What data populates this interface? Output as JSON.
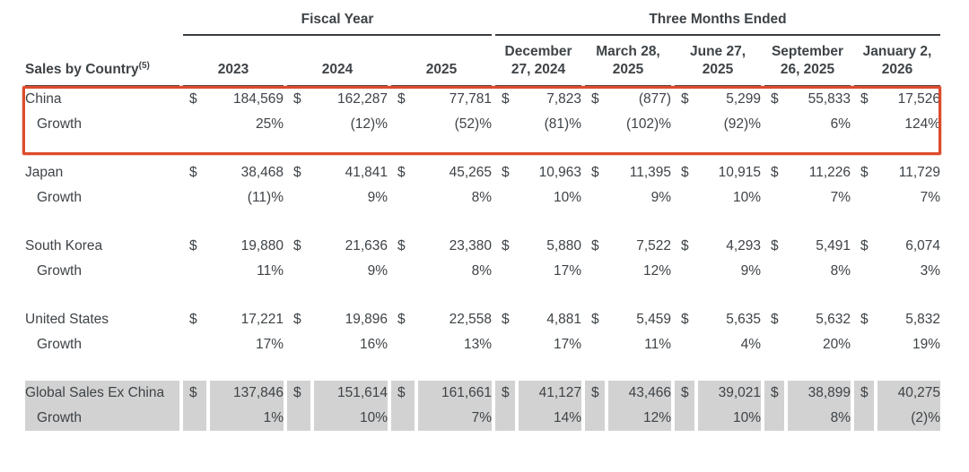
{
  "table": {
    "corner_label": "Sales by Country",
    "corner_superscript": "(5)",
    "currency_symbol": "$",
    "growth_label": "Growth",
    "groups": [
      {
        "label": "Fiscal Year",
        "columns": [
          [
            "2023"
          ],
          [
            "2024"
          ],
          [
            "2025"
          ]
        ]
      },
      {
        "label": "Three Months Ended",
        "columns": [
          [
            "December",
            "27, 2024"
          ],
          [
            "March 28,",
            "2025"
          ],
          [
            "June 27,",
            "2025"
          ],
          [
            "September",
            "26, 2025"
          ],
          [
            "January 2,",
            "2026"
          ]
        ]
      }
    ],
    "rows": [
      {
        "label": "China",
        "values": [
          "184,569",
          "162,287",
          "77,781",
          "7,823",
          "(877)",
          "5,299",
          "55,833",
          "17,526"
        ],
        "growth": [
          "25%",
          "(12)%",
          "(52)%",
          "(81)%",
          "(102)%",
          "(92)%",
          "6%",
          "124%"
        ],
        "highlighted": true,
        "shaded": false
      },
      {
        "label": "Japan",
        "values": [
          "38,468",
          "41,841",
          "45,265",
          "10,963",
          "11,395",
          "10,915",
          "11,226",
          "11,729"
        ],
        "growth": [
          "(11)%",
          "9%",
          "8%",
          "10%",
          "9%",
          "10%",
          "7%",
          "7%"
        ],
        "highlighted": false,
        "shaded": false
      },
      {
        "label": "South Korea",
        "values": [
          "19,880",
          "21,636",
          "23,380",
          "5,880",
          "7,522",
          "4,293",
          "5,491",
          "6,074"
        ],
        "growth": [
          "11%",
          "9%",
          "8%",
          "17%",
          "12%",
          "9%",
          "8%",
          "3%"
        ],
        "highlighted": false,
        "shaded": false
      },
      {
        "label": "United States",
        "values": [
          "17,221",
          "19,896",
          "22,558",
          "4,881",
          "5,459",
          "5,635",
          "5,632",
          "5,832"
        ],
        "growth": [
          "17%",
          "16%",
          "13%",
          "17%",
          "11%",
          "4%",
          "20%",
          "19%"
        ],
        "highlighted": false,
        "shaded": false
      },
      {
        "label": "Global Sales Ex China",
        "values": [
          "137,846",
          "151,614",
          "161,661",
          "41,127",
          "43,466",
          "39,021",
          "38,899",
          "40,275"
        ],
        "growth": [
          "1%",
          "10%",
          "7%",
          "14%",
          "12%",
          "10%",
          "8%",
          "(2)%"
        ],
        "highlighted": false,
        "shaded": true
      }
    ]
  },
  "annotation": {
    "type": "red-box",
    "target_row": "China",
    "color": "#dc4b2d"
  },
  "colors": {
    "text": "#3e4347",
    "rule": "#3a3e42",
    "shaded_row_background": "#d2d2d2",
    "background": "#ffffff"
  }
}
